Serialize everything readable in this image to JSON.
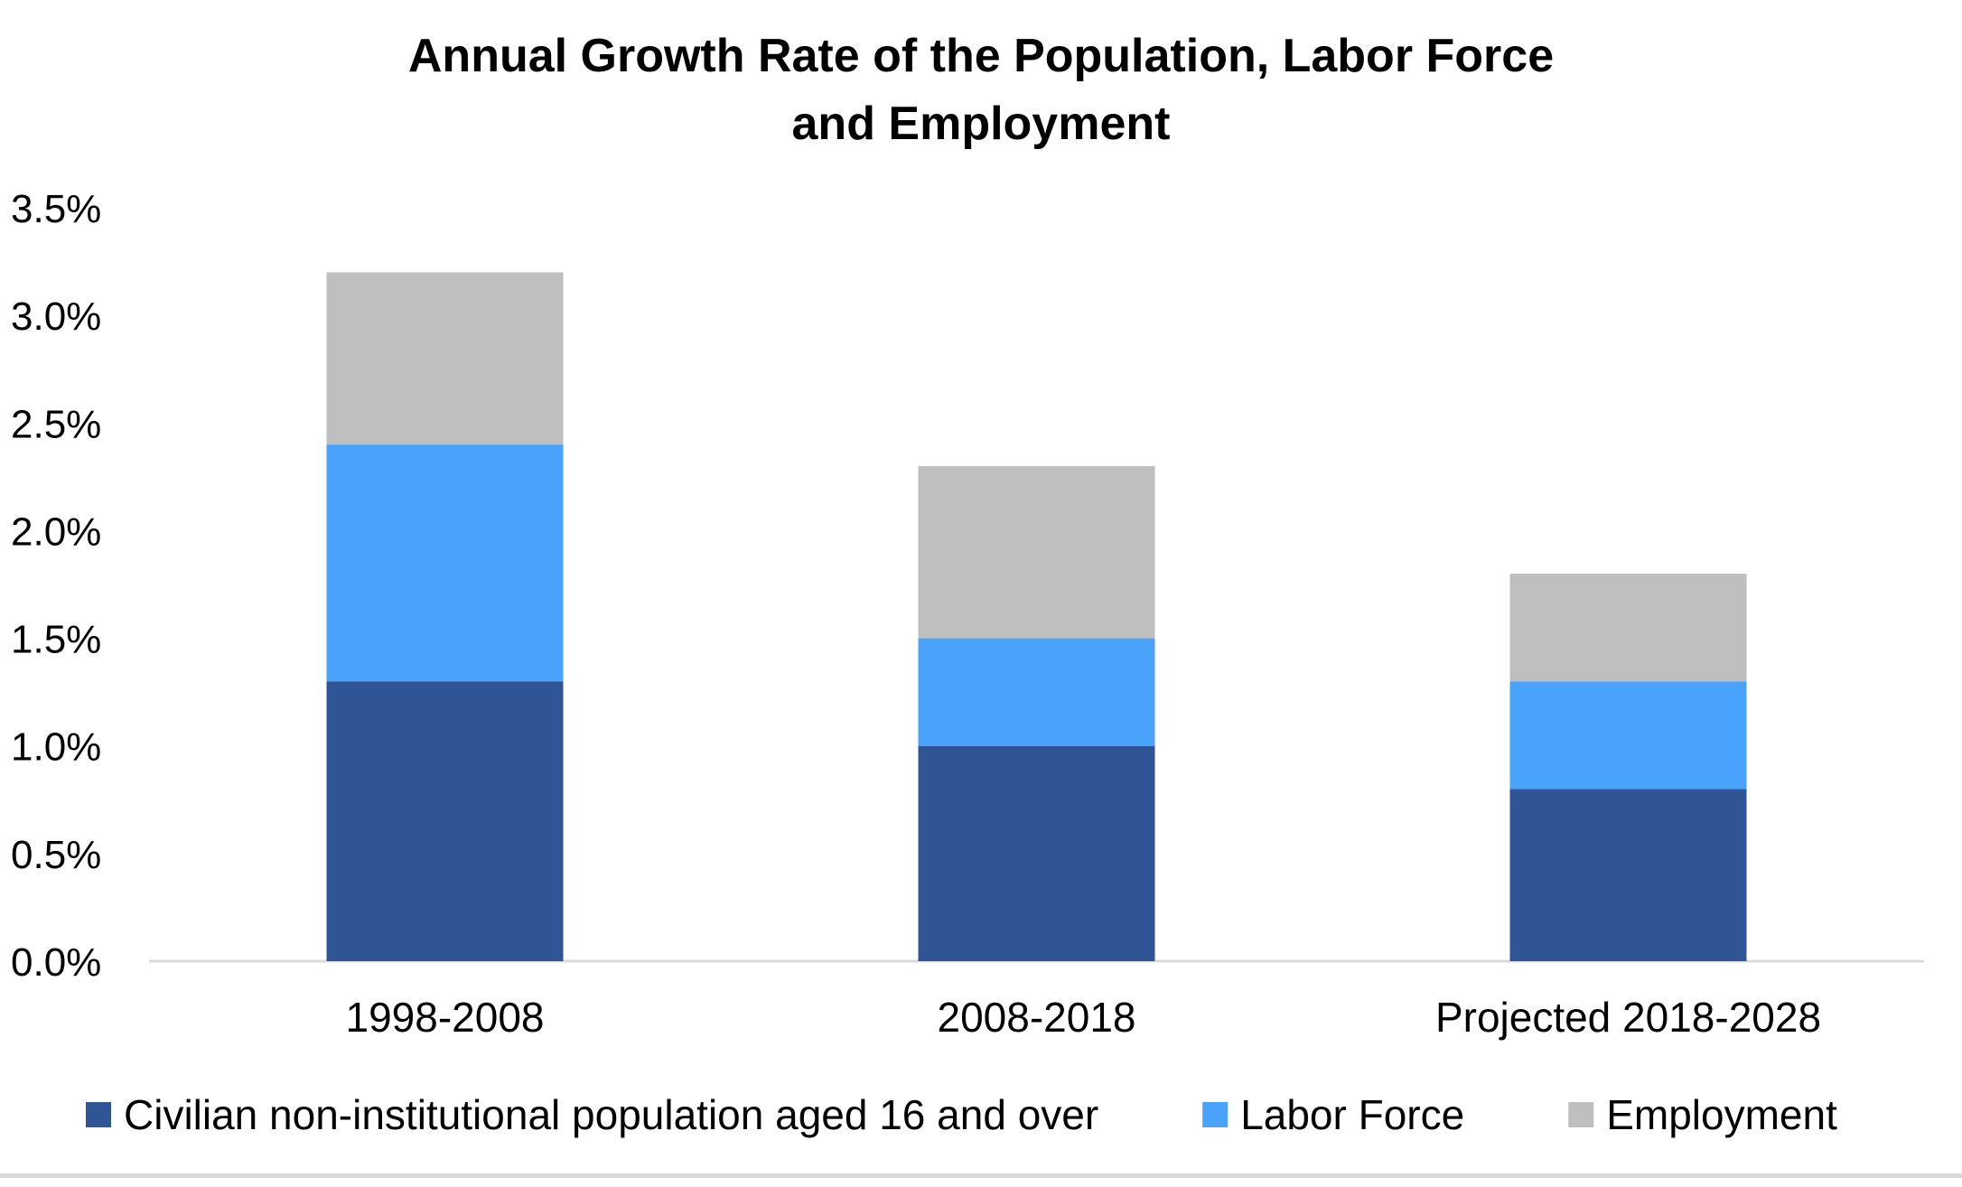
{
  "chart_data": {
    "type": "bar",
    "stacked": true,
    "title": [
      "Annual Growth Rate of the Population, Labor Force",
      "and Employment"
    ],
    "xlabel": "",
    "ylabel": "",
    "categories": [
      "1998-2008",
      "2008-2018",
      "Projected 2018-2028"
    ],
    "series": [
      {
        "name": "Civilian non-institutional population aged 16 and over",
        "color": "#2f5597",
        "values": [
          1.3,
          1.0,
          0.8
        ]
      },
      {
        "name": "Labor Force",
        "color": "#4aa3fb",
        "values": [
          1.1,
          0.5,
          0.5
        ]
      },
      {
        "name": "Employment",
        "color": "#bfbfbf",
        "values": [
          0.8,
          0.8,
          0.5
        ]
      }
    ],
    "ylim": [
      0,
      3.5
    ],
    "yticks": [
      "0.0%",
      "0.5%",
      "1.0%",
      "1.5%",
      "2.0%",
      "2.5%",
      "3.0%",
      "3.5%"
    ],
    "grid": false,
    "legend_position": "bottom"
  }
}
